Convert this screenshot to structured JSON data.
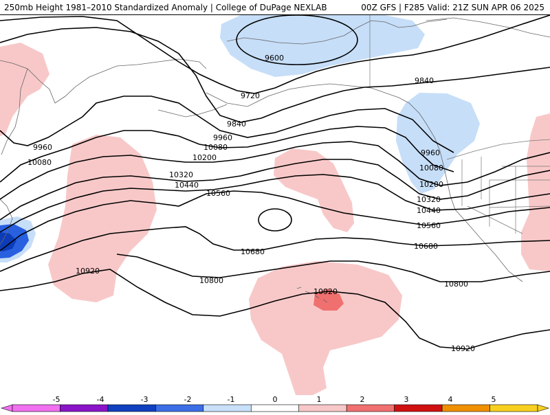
{
  "header": {
    "title_left": "250mb Height 1981–2010 Standardized Anomaly | College of DuPage NEXLAB",
    "title_right": "00Z GFS | F285 Valid: 21Z SUN APR 06 2025"
  },
  "contour_labels": [
    "9600",
    "9720",
    "9840",
    "9960",
    "10080",
    "10200",
    "10320",
    "10440",
    "10560",
    "10680",
    "10800",
    "10920"
  ],
  "colorbar": {
    "ticks": [
      "-5",
      "-4",
      "-3",
      "-2",
      "-1",
      "0",
      "1",
      "2",
      "3",
      "4",
      "5"
    ],
    "colors": [
      "#f070f0",
      "#8a14c8",
      "#1040c0",
      "#3c6ee6",
      "#c8e0fa",
      "#ffffff",
      "#f8c8c8",
      "#f07070",
      "#d01010",
      "#f09000",
      "#f8d020"
    ]
  },
  "anomaly_colors": {
    "neg1": "#c6def8",
    "neg2": "#2860e0",
    "neg3": "#0c3cb8",
    "pos1": "#f8c8c8",
    "pos2": "#f07070"
  }
}
